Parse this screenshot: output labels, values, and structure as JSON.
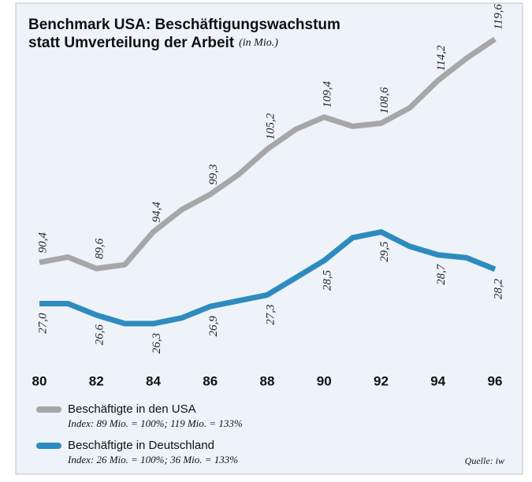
{
  "chart_data": {
    "type": "line",
    "title": [
      "Benchmark USA: Beschäftigungswachstum",
      "statt Umverteilung der Arbeit"
    ],
    "subtitle": "(in Mio.)",
    "x": [
      80,
      81,
      82,
      83,
      84,
      85,
      86,
      87,
      88,
      89,
      90,
      91,
      92,
      93,
      94,
      95,
      96
    ],
    "xlim": [
      80,
      96
    ],
    "xticks": [
      80,
      82,
      84,
      86,
      88,
      90,
      92,
      94,
      96
    ],
    "ylim": [
      79.4,
      120.6
    ],
    "y2lim": [
      25.5,
      36.5
    ],
    "series": [
      {
        "name": "Beschäftigte in den USA",
        "note": "Index: 89 Mio. = 100%; 119 Mio. = 133%",
        "color": "#a7a7a7",
        "axis": "y",
        "values": [
          90.4,
          91.1,
          89.6,
          90.1,
          94.4,
          97.3,
          99.3,
          101.9,
          105.2,
          107.8,
          109.4,
          108.2,
          108.6,
          110.6,
          114.2,
          117.1,
          119.6
        ],
        "value_labels": [
          "90,4",
          null,
          "89,6",
          null,
          "94,4",
          null,
          "99,3",
          null,
          "105,2",
          null,
          "109,4",
          null,
          "108,6",
          null,
          "114,2",
          null,
          "119,6"
        ]
      },
      {
        "name": "Beschäftigte in Deutschland",
        "note": "Index: 26 Mio. = 100%; 36 Mio. = 133%",
        "color": "#2e8bbf",
        "axis": "y2",
        "values": [
          27.0,
          27.0,
          26.6,
          26.3,
          26.3,
          26.5,
          26.9,
          27.1,
          27.3,
          27.9,
          28.5,
          29.3,
          29.5,
          29.0,
          28.7,
          28.6,
          28.2
        ],
        "value_labels": [
          "27,0",
          null,
          "26,6",
          null,
          "26,3",
          null,
          "26,9",
          null,
          "27,3",
          null,
          "28,5",
          null,
          "29,5",
          null,
          "28,7",
          null,
          "28,2"
        ]
      }
    ],
    "source": "Quelle: iw"
  }
}
